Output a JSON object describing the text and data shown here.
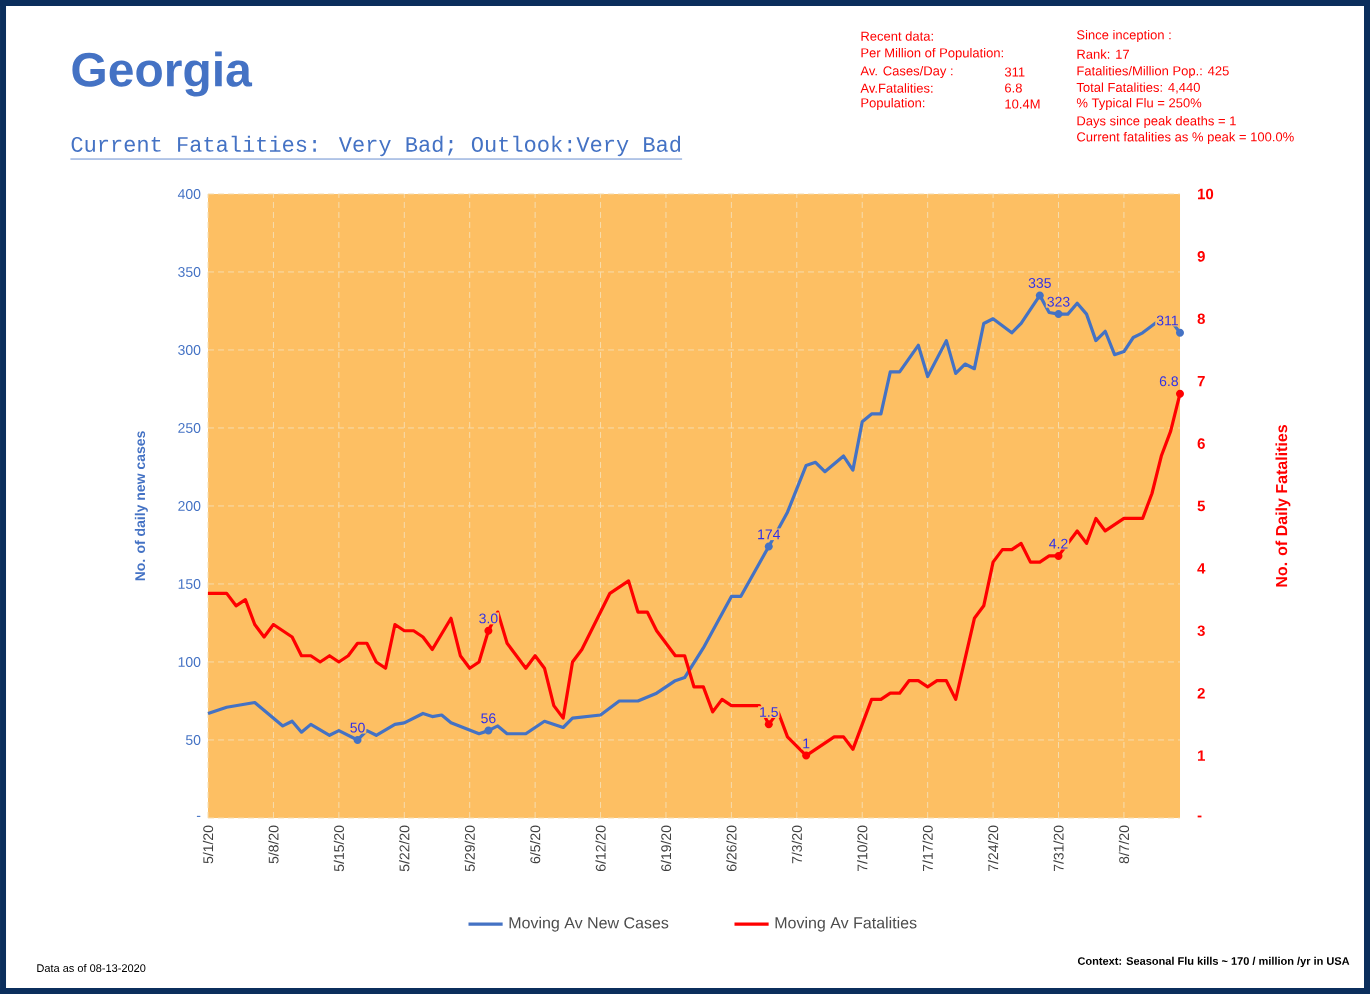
{
  "chart_data": {
    "type": "line",
    "title": "Georgia",
    "subtitle": "Current Fatalities: Very Bad; Outlook:Very Bad",
    "ylabel": "No. of daily new  cases",
    "y2label": "No. of Daily Fatalities",
    "annotations": [
      "Recent data:",
      "Per Million of Population:",
      "Av. Cases/Day :",
      "311",
      "Av.Fatalities:",
      "6.8",
      "Population:",
      "10.4M",
      "Since inception :",
      "Rank: 17",
      "Fatalities/Million Pop.: 425",
      "Total Fatalities: 4,440",
      "% Typical Flu = 250%",
      "Days since peak deaths = 1",
      "Current fatalities as % peak = 100.0%",
      "Data as of 08-13-2020",
      "Context: Seasonal Flu kills ~ 170 / million /yr in USA"
    ],
    "xlim": [
      "2020-05-01",
      "2020-08-13"
    ],
    "xticks": [
      {
        "value": "2020-05-01",
        "label": "5/1/20"
      },
      {
        "value": "2020-05-08",
        "label": "5/8/20"
      },
      {
        "value": "2020-05-15",
        "label": "5/15/20"
      },
      {
        "value": "2020-05-22",
        "label": "5/22/20"
      },
      {
        "value": "2020-05-29",
        "label": "5/29/20"
      },
      {
        "value": "2020-06-05",
        "label": "6/5/20"
      },
      {
        "value": "2020-06-12",
        "label": "6/12/20"
      },
      {
        "value": "2020-06-19",
        "label": "6/19/20"
      },
      {
        "value": "2020-06-26",
        "label": "6/26/20"
      },
      {
        "value": "2020-07-03",
        "label": "7/3/20"
      },
      {
        "value": "2020-07-10",
        "label": "7/10/20"
      },
      {
        "value": "2020-07-17",
        "label": "7/17/20"
      },
      {
        "value": "2020-07-24",
        "label": "7/24/20"
      },
      {
        "value": "2020-07-31",
        "label": "7/31/20"
      },
      {
        "value": "2020-08-07",
        "label": "8/7/20"
      }
    ],
    "ylim": [
      0,
      400
    ],
    "yticks": [
      {
        "value": 0,
        "label": "-"
      },
      50,
      100,
      150,
      200,
      250,
      300,
      350,
      400
    ],
    "y2lim": [
      0,
      10
    ],
    "y2ticks": [
      {
        "value": 0,
        "label": "-"
      },
      1,
      2,
      3,
      4,
      5,
      6,
      7,
      8,
      9,
      10
    ],
    "grid": true,
    "legend": "bottom",
    "series": [
      {
        "name": "Moving Av New Cases",
        "color": "#4472c4",
        "x": [
          "2020-05-01",
          "2020-05-03",
          "2020-05-06",
          "2020-05-09",
          "2020-05-10",
          "2020-05-11",
          "2020-05-12",
          "2020-05-14",
          "2020-05-15",
          "2020-05-17",
          "2020-05-18",
          "2020-05-19",
          "2020-05-21",
          "2020-05-22",
          "2020-05-24",
          "2020-05-25",
          "2020-05-26",
          "2020-05-27",
          "2020-05-30",
          "2020-05-31",
          "2020-06-01",
          "2020-06-02",
          "2020-06-04",
          "2020-06-06",
          "2020-06-08",
          "2020-06-09",
          "2020-06-12",
          "2020-06-14",
          "2020-06-16",
          "2020-06-18",
          "2020-06-20",
          "2020-06-21",
          "2020-06-23",
          "2020-06-26",
          "2020-06-27",
          "2020-06-30",
          "2020-07-02",
          "2020-07-04",
          "2020-07-05",
          "2020-07-06",
          "2020-07-08",
          "2020-07-09",
          "2020-07-10",
          "2020-07-11",
          "2020-07-12",
          "2020-07-13",
          "2020-07-14",
          "2020-07-16",
          "2020-07-17",
          "2020-07-19",
          "2020-07-20",
          "2020-07-21",
          "2020-07-22",
          "2020-07-23",
          "2020-07-24",
          "2020-07-26",
          "2020-07-27",
          "2020-07-29",
          "2020-07-30",
          "2020-07-31",
          "2020-08-01",
          "2020-08-02",
          "2020-08-03",
          "2020-08-04",
          "2020-08-05",
          "2020-08-06",
          "2020-08-07",
          "2020-08-08",
          "2020-08-09",
          "2020-08-11",
          "2020-08-12",
          "2020-08-13"
        ],
        "values": [
          67,
          71,
          74,
          59,
          62,
          55,
          60,
          53,
          56,
          50,
          56,
          53,
          60,
          61,
          67,
          65,
          66,
          61,
          54,
          56,
          59,
          54,
          54,
          62,
          58,
          64,
          66,
          75,
          75,
          80,
          88,
          90,
          109,
          142,
          142,
          174,
          196,
          226,
          228,
          222,
          232,
          223,
          254,
          259,
          259,
          286,
          286,
          303,
          283,
          306,
          285,
          291,
          288,
          317,
          320,
          311,
          317,
          335,
          324,
          323,
          323,
          330,
          323,
          306,
          312,
          297,
          299,
          308,
          311,
          320,
          319,
          311
        ],
        "value_labels": [
          null,
          null,
          null,
          null,
          null,
          null,
          null,
          null,
          null,
          "50",
          null,
          null,
          null,
          null,
          null,
          null,
          null,
          null,
          null,
          "56",
          null,
          null,
          null,
          null,
          null,
          null,
          null,
          null,
          null,
          null,
          null,
          null,
          null,
          null,
          null,
          "174",
          null,
          null,
          null,
          null,
          null,
          null,
          null,
          null,
          null,
          null,
          null,
          null,
          null,
          null,
          null,
          null,
          null,
          null,
          null,
          null,
          null,
          "335",
          null,
          "323",
          null,
          null,
          null,
          null,
          null,
          null,
          null,
          null,
          null,
          null,
          null,
          "311"
        ]
      },
      {
        "name": "Moving Av Fatalities",
        "color": "#ff0000",
        "axis": "y2",
        "x": [
          "2020-05-01",
          "2020-05-03",
          "2020-05-04",
          "2020-05-05",
          "2020-05-06",
          "2020-05-07",
          "2020-05-08",
          "2020-05-10",
          "2020-05-11",
          "2020-05-12",
          "2020-05-13",
          "2020-05-14",
          "2020-05-15",
          "2020-05-16",
          "2020-05-17",
          "2020-05-18",
          "2020-05-19",
          "2020-05-20",
          "2020-05-21",
          "2020-05-22",
          "2020-05-23",
          "2020-05-24",
          "2020-05-25",
          "2020-05-27",
          "2020-05-28",
          "2020-05-29",
          "2020-05-30",
          "2020-05-31",
          "2020-06-01",
          "2020-06-02",
          "2020-06-03",
          "2020-06-04",
          "2020-06-05",
          "2020-06-06",
          "2020-06-07",
          "2020-06-08",
          "2020-06-09",
          "2020-06-10",
          "2020-06-13",
          "2020-06-15",
          "2020-06-16",
          "2020-06-17",
          "2020-06-18",
          "2020-06-20",
          "2020-06-21",
          "2020-06-22",
          "2020-06-23",
          "2020-06-24",
          "2020-06-25",
          "2020-06-26",
          "2020-06-29",
          "2020-06-30",
          "2020-07-01",
          "2020-07-02",
          "2020-07-04",
          "2020-07-06",
          "2020-07-07",
          "2020-07-08",
          "2020-07-09",
          "2020-07-10",
          "2020-07-11",
          "2020-07-12",
          "2020-07-13",
          "2020-07-14",
          "2020-07-15",
          "2020-07-16",
          "2020-07-17",
          "2020-07-18",
          "2020-07-19",
          "2020-07-20",
          "2020-07-22",
          "2020-07-23",
          "2020-07-24",
          "2020-07-25",
          "2020-07-26",
          "2020-07-27",
          "2020-07-28",
          "2020-07-29",
          "2020-07-30",
          "2020-07-31",
          "2020-08-02",
          "2020-08-03",
          "2020-08-04",
          "2020-08-05",
          "2020-08-07",
          "2020-08-09",
          "2020-08-10",
          "2020-08-11",
          "2020-08-12",
          "2020-08-13"
        ],
        "values": [
          3.6,
          3.6,
          3.4,
          3.5,
          3.1,
          2.9,
          3.1,
          2.9,
          2.6,
          2.6,
          2.5,
          2.6,
          2.5,
          2.6,
          2.8,
          2.8,
          2.5,
          2.4,
          3.1,
          3.0,
          3.0,
          2.9,
          2.7,
          3.2,
          2.6,
          2.4,
          2.5,
          3.0,
          3.3,
          2.8,
          2.6,
          2.4,
          2.6,
          2.4,
          1.8,
          1.6,
          2.5,
          2.7,
          3.6,
          3.8,
          3.3,
          3.3,
          3.0,
          2.6,
          2.6,
          2.1,
          2.1,
          1.7,
          1.9,
          1.8,
          1.8,
          1.5,
          1.7,
          1.3,
          1.0,
          1.2,
          1.3,
          1.3,
          1.1,
          1.5,
          1.9,
          1.9,
          2.0,
          2.0,
          2.2,
          2.2,
          2.1,
          2.2,
          2.2,
          1.9,
          3.2,
          3.4,
          4.1,
          4.3,
          4.3,
          4.4,
          4.1,
          4.1,
          4.2,
          4.2,
          4.6,
          4.4,
          4.8,
          4.6,
          4.8,
          4.8,
          5.2,
          5.8,
          6.2,
          6.8
        ],
        "value_labels": [
          null,
          null,
          null,
          null,
          null,
          null,
          null,
          null,
          null,
          null,
          null,
          null,
          null,
          null,
          null,
          null,
          null,
          null,
          null,
          null,
          null,
          null,
          null,
          null,
          null,
          null,
          null,
          "3.0",
          null,
          null,
          null,
          null,
          null,
          null,
          null,
          null,
          null,
          null,
          null,
          null,
          null,
          null,
          null,
          null,
          null,
          null,
          null,
          null,
          null,
          null,
          null,
          "1.5",
          null,
          null,
          "1",
          null,
          null,
          null,
          null,
          null,
          null,
          null,
          null,
          null,
          null,
          null,
          null,
          null,
          null,
          null,
          null,
          null,
          null,
          null,
          null,
          null,
          null,
          null,
          null,
          "4.2",
          null,
          null,
          null,
          null,
          null,
          null,
          null,
          null,
          null,
          "6.8"
        ]
      }
    ]
  }
}
